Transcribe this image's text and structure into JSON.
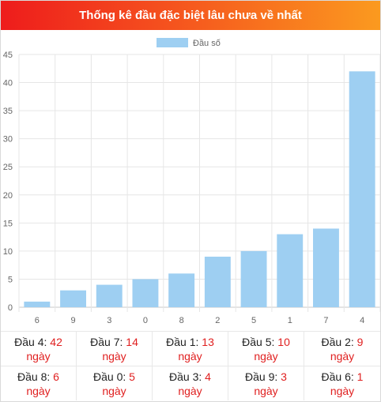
{
  "title": "Thống kê đầu đặc biệt lâu chưa về nhất",
  "unit_label": "ngày",
  "colors": {
    "bar": "#9ecff2",
    "accent": "#e02020"
  },
  "chart_data": {
    "type": "bar",
    "categories": [
      "6",
      "9",
      "3",
      "0",
      "8",
      "2",
      "5",
      "1",
      "7",
      "4"
    ],
    "series": [
      {
        "name": "Đầu số",
        "values": [
          1,
          3,
          4,
          5,
          6,
          9,
          10,
          13,
          14,
          42
        ]
      }
    ],
    "ylim": [
      0,
      45
    ],
    "yticks": [
      0,
      5,
      10,
      15,
      20,
      25,
      30,
      35,
      40,
      45
    ],
    "legend": "top-center",
    "grid": true
  },
  "stats": [
    {
      "label": "Đầu 4:",
      "value": "42"
    },
    {
      "label": "Đầu 7:",
      "value": "14"
    },
    {
      "label": "Đầu 1:",
      "value": "13"
    },
    {
      "label": "Đầu 5:",
      "value": "10"
    },
    {
      "label": "Đầu 2:",
      "value": "9"
    },
    {
      "label": "Đầu 8:",
      "value": "6"
    },
    {
      "label": "Đầu 0:",
      "value": "5"
    },
    {
      "label": "Đầu 3:",
      "value": "4"
    },
    {
      "label": "Đầu 9:",
      "value": "3"
    },
    {
      "label": "Đầu 6:",
      "value": "1"
    }
  ]
}
